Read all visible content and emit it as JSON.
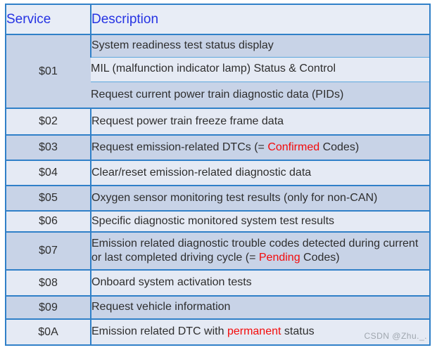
{
  "table": {
    "headers": {
      "service": "Service",
      "description": "Description"
    },
    "rows": [
      {
        "service": "$01",
        "lines": [
          [
            {
              "text": "System readiness test status display"
            }
          ],
          [
            {
              "text": "MIL (malfunction indicator lamp) Status & Control"
            }
          ],
          [
            {
              "text": "Request current power train diagnostic data (PIDs)"
            }
          ]
        ]
      },
      {
        "service": "$02",
        "lines": [
          [
            {
              "text": "Request power train freeze frame data"
            }
          ]
        ]
      },
      {
        "service": "$03",
        "lines": [
          [
            {
              "text": "Request emission-related DTCs (= "
            },
            {
              "text": "Confirmed",
              "highlight": true
            },
            {
              "text": " Codes)"
            }
          ]
        ]
      },
      {
        "service": "$04",
        "lines": [
          [
            {
              "text": "Clear/reset emission-related diagnostic data"
            }
          ]
        ]
      },
      {
        "service": "$05",
        "lines": [
          [
            {
              "text": "Oxygen sensor monitoring test results (only for non-CAN)"
            }
          ]
        ]
      },
      {
        "service": "$06",
        "lines": [
          [
            {
              "text": "Specific diagnostic monitored system test results"
            }
          ]
        ]
      },
      {
        "service": "$07",
        "lines": [
          [
            {
              "text": "Emission related diagnostic trouble codes detected during current or last completed driving cycle (= "
            },
            {
              "text": "Pending",
              "highlight": true
            },
            {
              "text": " Codes)"
            }
          ]
        ]
      },
      {
        "service": "$08",
        "lines": [
          [
            {
              "text": "Onboard system activation tests"
            }
          ]
        ]
      },
      {
        "service": "$09",
        "lines": [
          [
            {
              "text": "Request vehicle information"
            }
          ]
        ]
      },
      {
        "service": "$0A",
        "lines": [
          [
            {
              "text": "Emission related DTC with "
            },
            {
              "text": "permanent",
              "highlight": true
            },
            {
              "text": " status"
            }
          ]
        ]
      }
    ]
  },
  "watermark": "CSDN @Zhu._.",
  "colors": {
    "border": "#3080c8",
    "subline": "#5ea8dd",
    "row_dark": "#c8d3e7",
    "row_light": "#e5eaf4",
    "header_bg": "#e8edf6",
    "header_text": "#2533e3",
    "body_text": "#2e2e2e",
    "red_highlight": "#f40b0b",
    "watermark_text": "#9fa6ae"
  }
}
